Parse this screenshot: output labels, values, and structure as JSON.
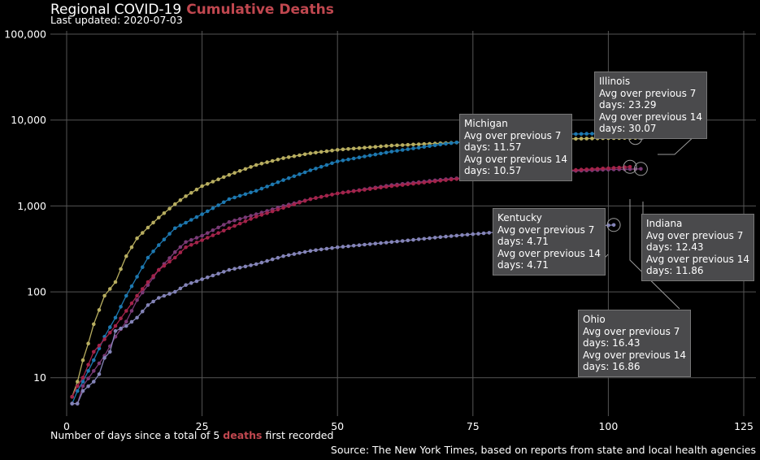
{
  "header": {
    "title_prefix": "Regional COVID-19",
    "title_highlight": "Cumulative Deaths",
    "updated": "Last updated: 2020-07-03"
  },
  "x_caption": {
    "before": "Number of days since a total of 5 ",
    "highlight": "deaths",
    "after": " first recorded"
  },
  "source": "Source: The New York Times, based on reports from state and local health agencies",
  "colors": {
    "highlight": "#c0474f",
    "background": "#000000",
    "grid": "#555555",
    "tooltip_bg": "#4a4a4c"
  },
  "chart_data": {
    "type": "line",
    "title": "Regional COVID-19 Cumulative Deaths",
    "xlabel": "Number of days since a total of 5 deaths first recorded",
    "ylabel": "",
    "xlim": [
      -3,
      128
    ],
    "ylim": [
      3,
      250000
    ],
    "y_scale": "log",
    "x_ticks": [
      0,
      25,
      50,
      75,
      100,
      125
    ],
    "x_tick_labels": [
      "0",
      "25",
      "50",
      "75",
      "100",
      "125"
    ],
    "y_ticks": [
      10,
      100,
      1000,
      10000,
      100000
    ],
    "y_tick_labels": [
      "10",
      "100",
      "1,000",
      "10,000",
      "100,000"
    ],
    "grid": true,
    "series": [
      {
        "key": "michigan",
        "color": "#b8ae60",
        "end": 105,
        "anchors": [
          [
            1,
            6
          ],
          [
            2,
            9
          ],
          [
            3,
            16
          ],
          [
            4,
            25
          ],
          [
            5,
            42
          ],
          [
            7,
            90
          ],
          [
            9,
            130
          ],
          [
            11,
            260
          ],
          [
            13,
            420
          ],
          [
            15,
            560
          ],
          [
            17,
            730
          ],
          [
            20,
            1050
          ],
          [
            22,
            1300
          ],
          [
            25,
            1700
          ],
          [
            30,
            2300
          ],
          [
            35,
            3000
          ],
          [
            40,
            3600
          ],
          [
            45,
            4100
          ],
          [
            50,
            4500
          ],
          [
            60,
            5050
          ],
          [
            70,
            5400
          ],
          [
            80,
            5750
          ],
          [
            90,
            6000
          ],
          [
            100,
            6150
          ],
          [
            105,
            6200
          ]
        ]
      },
      {
        "key": "illinois",
        "color": "#1d78b0",
        "end": 106,
        "anchors": [
          [
            1,
            5
          ],
          [
            2,
            7
          ],
          [
            3,
            9
          ],
          [
            5,
            16
          ],
          [
            7,
            30
          ],
          [
            9,
            50
          ],
          [
            11,
            90
          ],
          [
            13,
            150
          ],
          [
            15,
            250
          ],
          [
            17,
            350
          ],
          [
            20,
            550
          ],
          [
            25,
            800
          ],
          [
            30,
            1200
          ],
          [
            35,
            1500
          ],
          [
            40,
            2000
          ],
          [
            45,
            2600
          ],
          [
            50,
            3300
          ],
          [
            60,
            4300
          ],
          [
            70,
            5300
          ],
          [
            80,
            6300
          ],
          [
            90,
            6800
          ],
          [
            100,
            7000
          ],
          [
            106,
            7100
          ]
        ]
      },
      {
        "key": "indiana",
        "color": "#7a3a76",
        "end": 106,
        "anchors": [
          [
            1,
            5
          ],
          [
            2,
            5
          ],
          [
            3,
            8
          ],
          [
            5,
            12
          ],
          [
            7,
            18
          ],
          [
            9,
            30
          ],
          [
            11,
            45
          ],
          [
            13,
            80
          ],
          [
            15,
            120
          ],
          [
            17,
            180
          ],
          [
            20,
            290
          ],
          [
            22,
            380
          ],
          [
            25,
            450
          ],
          [
            30,
            650
          ],
          [
            35,
            800
          ],
          [
            40,
            1000
          ],
          [
            45,
            1200
          ],
          [
            50,
            1400
          ],
          [
            60,
            1750
          ],
          [
            70,
            2050
          ],
          [
            80,
            2300
          ],
          [
            90,
            2500
          ],
          [
            100,
            2650
          ],
          [
            106,
            2700
          ]
        ]
      },
      {
        "key": "ohio",
        "color": "#a3234a",
        "end": 104,
        "anchors": [
          [
            1,
            6
          ],
          [
            2,
            8
          ],
          [
            3,
            10
          ],
          [
            5,
            20
          ],
          [
            7,
            28
          ],
          [
            9,
            40
          ],
          [
            11,
            60
          ],
          [
            13,
            90
          ],
          [
            15,
            130
          ],
          [
            17,
            180
          ],
          [
            20,
            250
          ],
          [
            22,
            330
          ],
          [
            25,
            400
          ],
          [
            30,
            550
          ],
          [
            35,
            750
          ],
          [
            40,
            950
          ],
          [
            45,
            1200
          ],
          [
            50,
            1400
          ],
          [
            60,
            1700
          ],
          [
            70,
            2000
          ],
          [
            80,
            2300
          ],
          [
            90,
            2550
          ],
          [
            100,
            2750
          ],
          [
            104,
            2850
          ]
        ]
      },
      {
        "key": "kentucky",
        "color": "#8484b8",
        "end": 101,
        "anchors": [
          [
            1,
            5
          ],
          [
            2,
            5
          ],
          [
            3,
            7
          ],
          [
            5,
            9
          ],
          [
            6,
            11
          ],
          [
            7,
            17
          ],
          [
            8,
            20
          ],
          [
            9,
            35
          ],
          [
            11,
            40
          ],
          [
            13,
            50
          ],
          [
            15,
            70
          ],
          [
            17,
            85
          ],
          [
            20,
            100
          ],
          [
            22,
            120
          ],
          [
            25,
            140
          ],
          [
            30,
            180
          ],
          [
            35,
            210
          ],
          [
            40,
            260
          ],
          [
            45,
            300
          ],
          [
            50,
            330
          ],
          [
            60,
            380
          ],
          [
            70,
            440
          ],
          [
            80,
            500
          ],
          [
            90,
            550
          ],
          [
            101,
            600
          ]
        ]
      }
    ],
    "annotations": [
      {
        "state": "Michigan",
        "line1": "Avg over previous 7",
        "line2": "days: 11.57",
        "line3": "Avg over previous 14",
        "line4": "days: 10.57"
      },
      {
        "state": "Illinois",
        "line1": "Avg over previous 7",
        "line2": "days: 23.29",
        "line3": "Avg over previous 14",
        "line4": "days: 30.07"
      },
      {
        "state": "Kentucky",
        "line1": "Avg over previous 7",
        "line2": "days: 4.71",
        "line3": "Avg over previous 14",
        "line4": "days: 4.71"
      },
      {
        "state": "Indiana",
        "line1": "Avg over previous 7",
        "line2": "days: 12.43",
        "line3": "Avg over previous 14",
        "line4": "days: 11.86"
      },
      {
        "state": "Ohio",
        "line1": "Avg over previous 7",
        "line2": "days: 16.43",
        "line3": "Avg over previous 14",
        "line4": "days: 16.86"
      }
    ]
  }
}
